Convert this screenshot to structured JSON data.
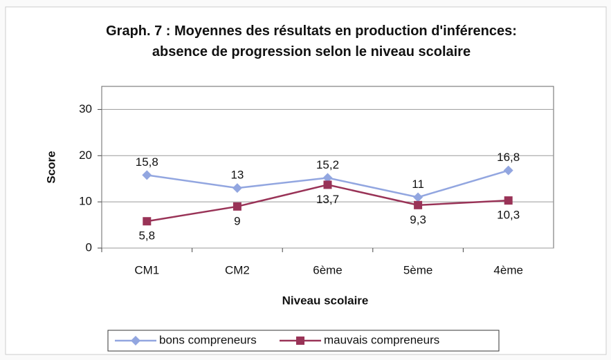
{
  "chart_data": {
    "type": "line",
    "title": "Graph. 7 : Moyennes des résultats en production d'inférences: absence de progression selon le niveau scolaire",
    "x_label": "Niveau scolaire",
    "y_label": "Score",
    "categories": [
      "CM1",
      "CM2",
      "6ème",
      "5ème",
      "4ème"
    ],
    "series": [
      {
        "name": "bons compreneurs",
        "color": "#92a6e0",
        "marker": "diamond",
        "values": [
          15.8,
          13,
          15.2,
          11,
          16.8
        ],
        "value_labels": [
          "15,8",
          "13",
          "15,2",
          "11",
          "16,8"
        ]
      },
      {
        "name": "mauvais compreneurs",
        "color": "#993357",
        "marker": "square",
        "values": [
          5.8,
          9,
          13.7,
          9.3,
          10.3
        ],
        "value_labels": [
          "5,8",
          "9",
          "13,7",
          "9,3",
          "10,3"
        ]
      }
    ],
    "ylim": [
      0,
      35
    ],
    "yticks": [
      0,
      10,
      20,
      30
    ],
    "grid": true,
    "legend": "bottom"
  }
}
